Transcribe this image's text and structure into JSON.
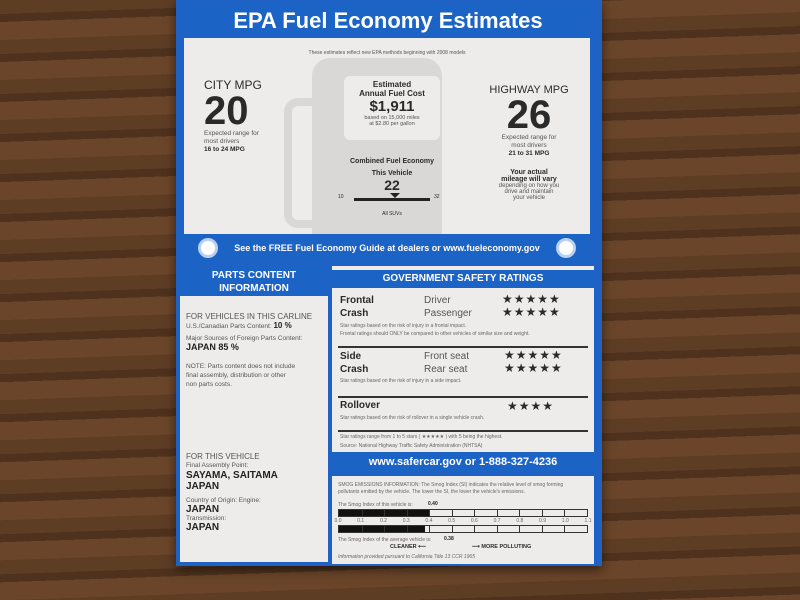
{
  "header": {
    "title": "EPA Fuel Economy Estimates",
    "note": "These estimates reflect new EPA methods beginning with 2008 models"
  },
  "city": {
    "label": "CITY MPG",
    "value": "20",
    "range_text": "Expected range for most drivers",
    "range": "16 to 24 MPG"
  },
  "highway": {
    "label": "HIGHWAY MPG",
    "value": "26",
    "range_text": "Expected range for most drivers",
    "range": "21 to 31 MPG"
  },
  "cost": {
    "title1": "Estimated",
    "title2": "Annual Fuel Cost",
    "amount": "$1,911",
    "basis1": "based on 15,000 miles",
    "basis2": "at $2.80 per gallon"
  },
  "combined": {
    "title": "Combined Fuel Economy",
    "sub": "This Vehicle",
    "value": "22",
    "min": "10",
    "max": "32",
    "class": "All SUVs"
  },
  "vary": {
    "bold1": "Your actual",
    "bold2": "mileage will vary",
    "t1": "depending on how you",
    "t2": "drive and maintain",
    "t3": "your vehicle"
  },
  "guide": "See the FREE Fuel Economy Guide at dealers or www.fueleconomy.gov",
  "parts": {
    "title1": "PARTS CONTENT",
    "title2": "INFORMATION",
    "carline": "FOR VEHICLES IN THIS CARLINE",
    "us_label": "U.S./Canadian Parts Content:",
    "us_value": "10 %",
    "foreign_label": "Major Sources of Foreign Parts Content:",
    "foreign_value": "JAPAN 85 %",
    "note1": "NOTE: Parts content does not include",
    "note2": "final assembly, distribution or other",
    "note3": "non parts costs.",
    "vehicle": "FOR THIS VEHICLE",
    "assembly_label": "Final Assembly Point:",
    "assembly1": "SAYAMA, SAITAMA",
    "assembly2": "JAPAN",
    "engine_label": "Country of Origin: Engine:",
    "engine": "JAPAN",
    "trans_label": "Transmission:",
    "trans": "JAPAN"
  },
  "safety": {
    "title": "GOVERNMENT SAFETY RATINGS",
    "frontal": {
      "l1": "Frontal",
      "l2": "Crash",
      "r1": "Driver",
      "r2": "Passenger",
      "s1": "★★★★★",
      "s2": "★★★★★",
      "stars1": 5,
      "stars2": 5,
      "n1": "Star ratings based on the risk of injury in a frontal impact.",
      "n2": "Frontal ratings should ONLY be compared to other vehicles of similar size and weight."
    },
    "side": {
      "l1": "Side",
      "l2": "Crash",
      "r1": "Front seat",
      "r2": "Rear seat",
      "s1": "★★★★★",
      "s2": "★★★★★",
      "stars1": 5,
      "stars2": 5,
      "n1": "Star ratings based on the risk of injury in a side impact."
    },
    "rollover": {
      "l1": "Rollover",
      "s1": "★★★★",
      "stars1": 4,
      "n1": "Star ratings based on the risk of rollover in a single vehicle crash."
    },
    "range": "Star ratings range from 1 to 5 stars ( ★★★★★ ) with 5 being the highest.",
    "source": "Source: National Highway Traffic Safety Administration (NHTSA)",
    "contact": "www.safercar.gov or 1-888-327-4236"
  },
  "smog": {
    "intro": "SMOG EMISSIONS INFORMATION: The Smog Index (SI) indicates the relative level of smog forming pollutants emitted by the vehicle. The lower the SI, the lower the vehicle's emissions.",
    "vehicle_label": "The Smog Index of this vehicle is:",
    "vehicle_value": "0.40",
    "average_label": "The Smog Index of the average vehicle is:",
    "average_value": "0.38",
    "ticks": [
      "0.0",
      "0.1",
      "0.2",
      "0.3",
      "0.4",
      "0.5",
      "0.6",
      "0.7",
      "0.8",
      "0.9",
      "1.0",
      "1.1"
    ],
    "max": 1.1,
    "cleaner": "CLEANER",
    "more": "MORE POLLUTING",
    "footer": "Information provided pursuant to California Title 13 CCR 1965"
  }
}
